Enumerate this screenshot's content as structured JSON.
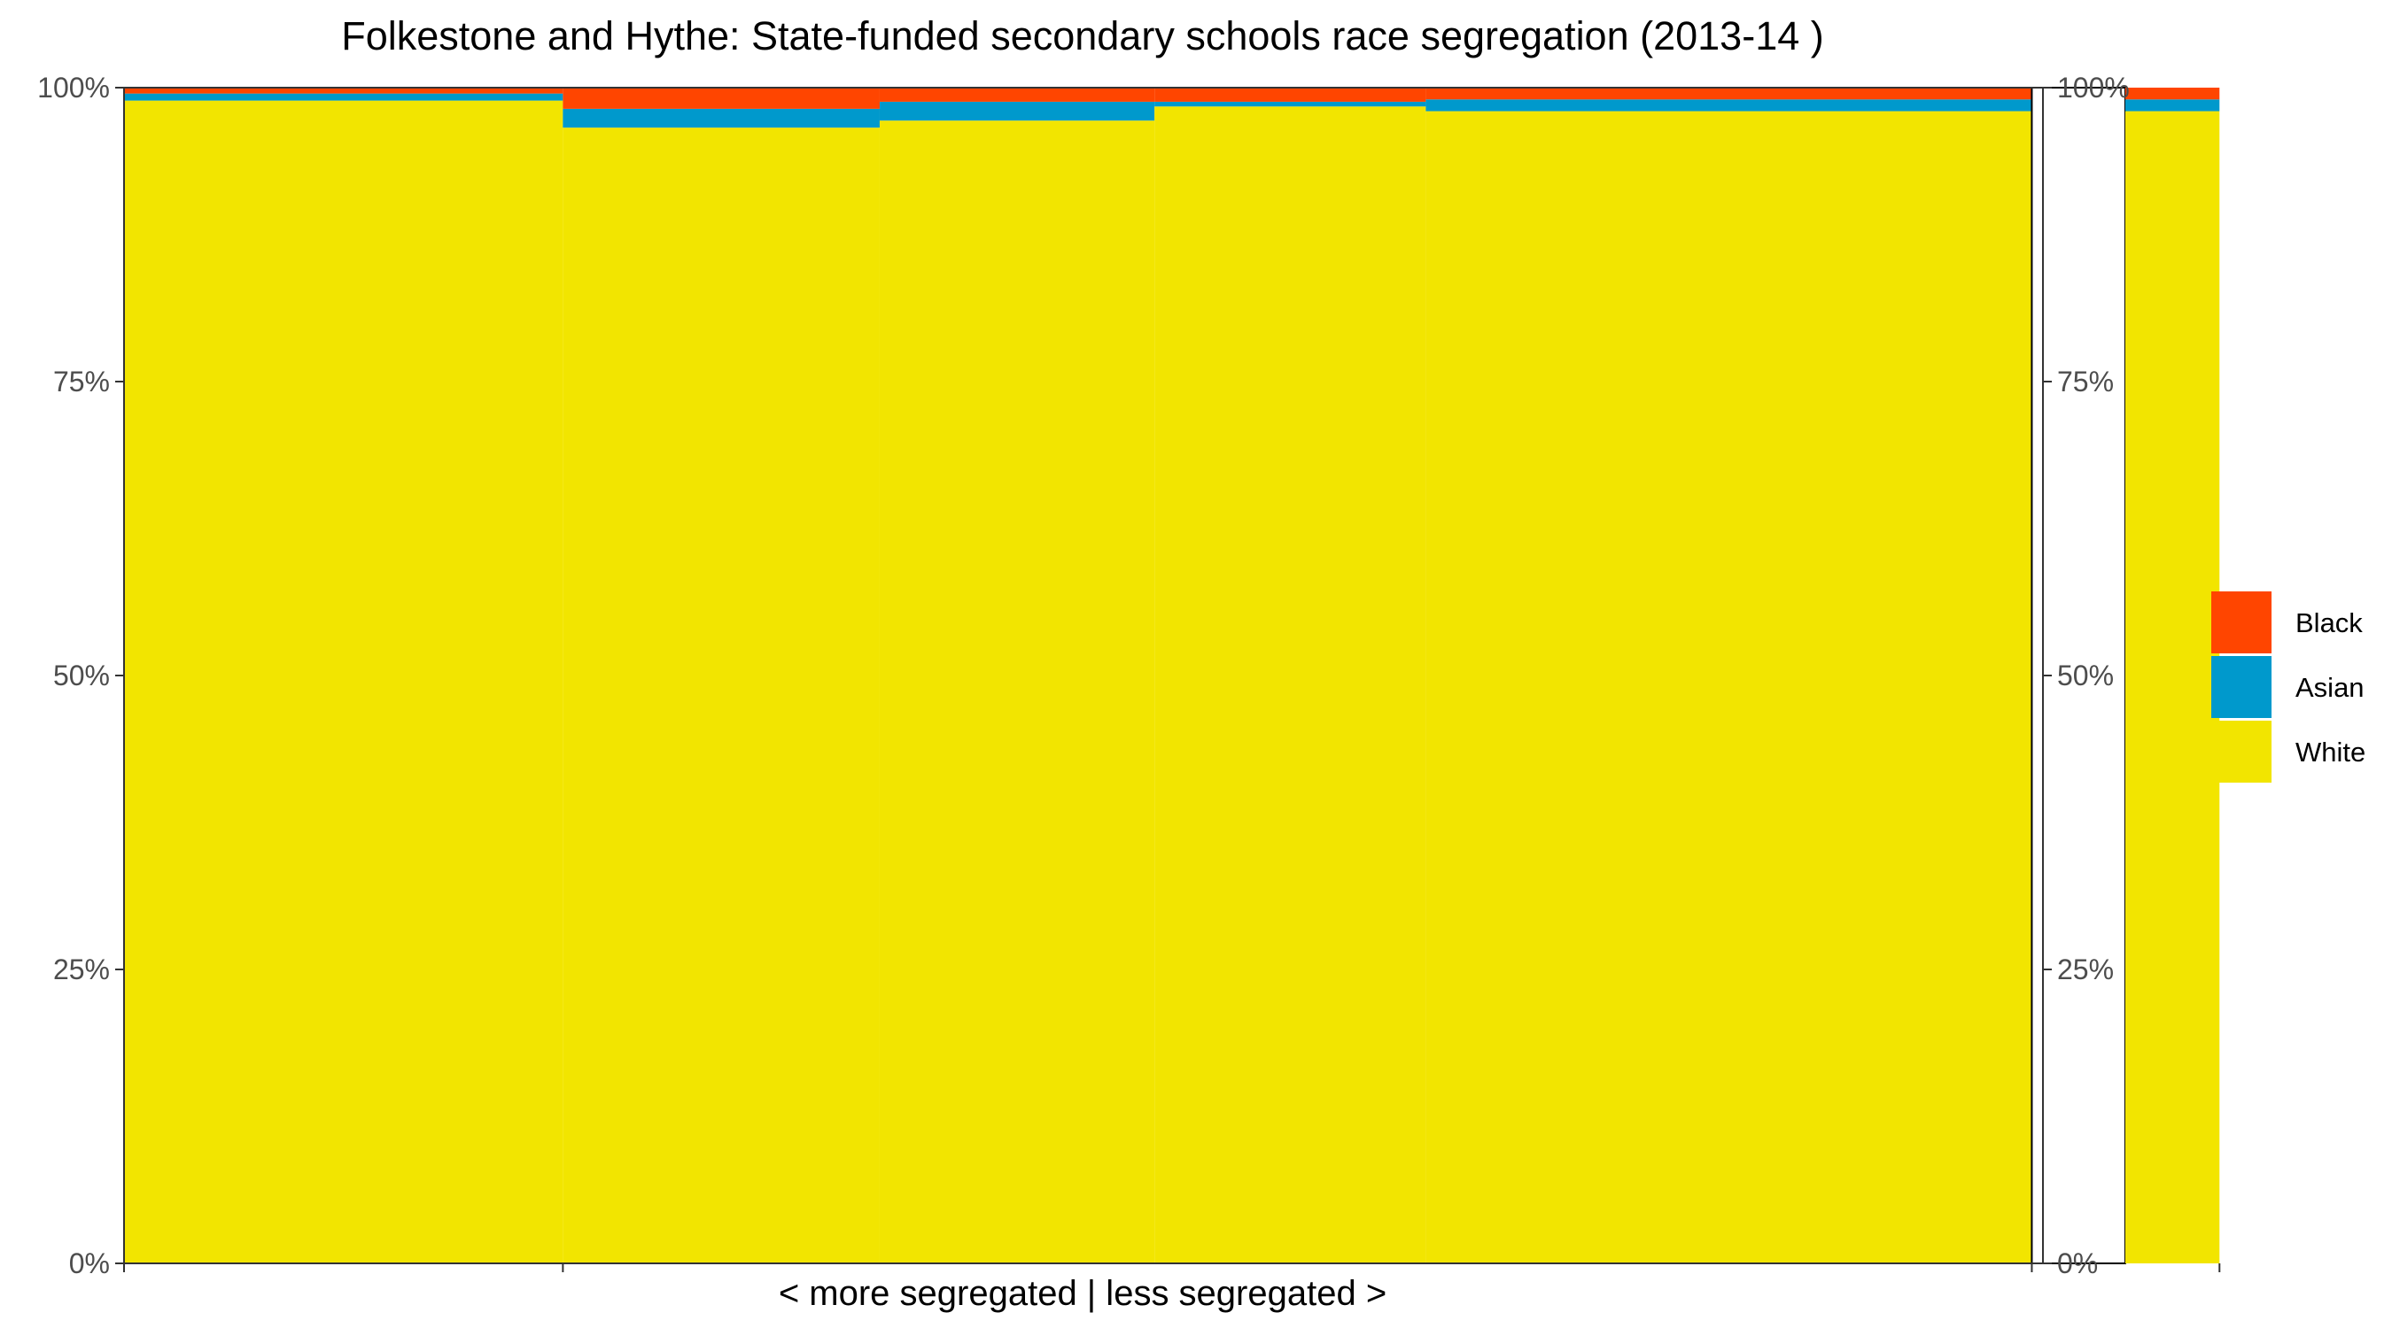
{
  "chart_data": {
    "type": "bar",
    "subtype": "stacked-100-variable-width",
    "title": "Folkestone and Hythe: State-funded secondary schools race segregation (2013-14 )",
    "xlabel": "< more segregated | less segregated >",
    "ylabel": "",
    "ylim": [
      0,
      100
    ],
    "y_ticks": [
      "0%",
      "25%",
      "50%",
      "75%",
      "100%"
    ],
    "y_tick_values": [
      0,
      25,
      50,
      75,
      100
    ],
    "secondary_y_axis": true,
    "grid": false,
    "legend_position": "right",
    "colors": {
      "Black": "#FF4500",
      "Asian": "#0099CC",
      "White": "#F2E500"
    },
    "stack_order": [
      "White",
      "Asian",
      "Black"
    ],
    "legend_order": [
      "Black",
      "Asian",
      "White"
    ],
    "bars": [
      {
        "width_share": 0.2287,
        "White": 98.9,
        "Asian": 0.6,
        "Black": 0.5
      },
      {
        "width_share": 0.1651,
        "White": 96.6,
        "Asian": 1.6,
        "Black": 1.8
      },
      {
        "width_share": 0.1432,
        "White": 97.2,
        "Asian": 1.6,
        "Black": 1.2
      },
      {
        "width_share": 0.1414,
        "White": 98.4,
        "Asian": 0.4,
        "Black": 1.2
      },
      {
        "width_share": 0.3158,
        "White": 98.0,
        "Asian": 1.0,
        "Black": 1.0
      },
      {
        "width_share": 0.0487,
        "White": 0,
        "Asian": 0,
        "Black": 0,
        "empty": true
      },
      {
        "width_share": 0.0491,
        "White": 98.0,
        "Asian": 1.0,
        "Black": 1.0
      }
    ],
    "x_tick_after_bars": [
      0,
      1,
      5,
      7
    ]
  }
}
